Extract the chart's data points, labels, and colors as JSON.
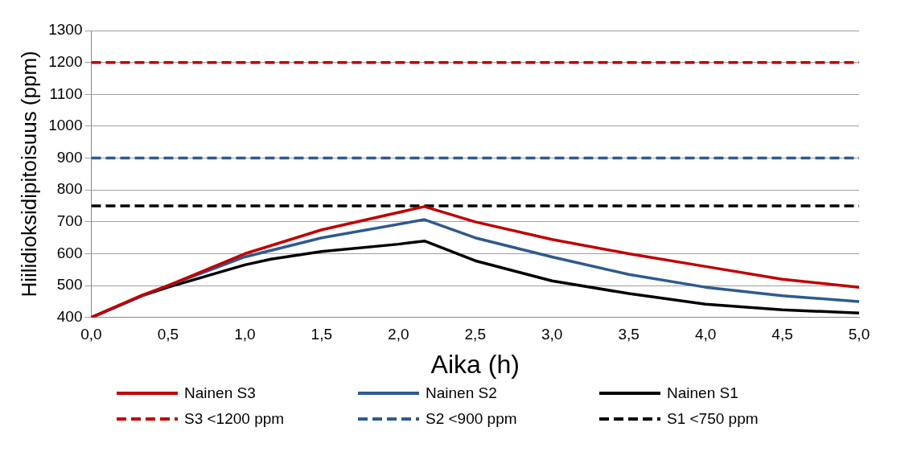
{
  "chart_data": {
    "type": "line",
    "xlabel": "Aika (h)",
    "ylabel": "Hiilidioksidipitoisuus (ppm)",
    "xlim": [
      0,
      5
    ],
    "xticks": [
      {
        "value": 0,
        "label": "0,0"
      },
      {
        "value": 0.5,
        "label": "0,5"
      },
      {
        "value": 1,
        "label": "1,0"
      },
      {
        "value": 1.5,
        "label": "1,5"
      },
      {
        "value": 2,
        "label": "2,0"
      },
      {
        "value": 2.5,
        "label": "2,5"
      },
      {
        "value": 3,
        "label": "3,0"
      },
      {
        "value": 3.5,
        "label": "3,5"
      },
      {
        "value": 4,
        "label": "4,0"
      },
      {
        "value": 4.5,
        "label": "4,5"
      },
      {
        "value": 5,
        "label": "5,0"
      }
    ],
    "ylim": [
      400,
      1300
    ],
    "yticks": [
      400,
      500,
      600,
      700,
      800,
      900,
      1000,
      1100,
      1200,
      1300
    ],
    "grid": "y",
    "legend": "bottom",
    "marker": "none",
    "line_style": "solid",
    "series": [
      {
        "name": "Nainen S3",
        "color": "#c00000",
        "x": [
          0,
          0.33,
          0.5,
          1,
          1.5,
          2.17,
          2.5,
          3,
          3.5,
          4,
          4.5,
          5
        ],
        "values": [
          400,
          470,
          500,
          600,
          675,
          748,
          700,
          645,
          600,
          560,
          520,
          495
        ]
      },
      {
        "name": "Nainen S2",
        "color": "#2e5a8e",
        "x": [
          0,
          0.33,
          0.5,
          1,
          1.5,
          2.17,
          2.5,
          3,
          3.5,
          4,
          4.5,
          5
        ],
        "values": [
          400,
          468,
          500,
          590,
          650,
          707,
          650,
          590,
          535,
          495,
          468,
          450
        ]
      },
      {
        "name": "Nainen S1",
        "color": "#000000",
        "x": [
          0,
          0.33,
          0.5,
          1,
          1.17,
          1.5,
          2,
          2.17,
          2.5,
          3,
          3.5,
          4,
          4.5,
          5
        ],
        "values": [
          400,
          468,
          495,
          565,
          583,
          607,
          630,
          640,
          578,
          515,
          475,
          442,
          424,
          414
        ]
      }
    ],
    "ref_lines": [
      {
        "axis": "y",
        "value": 1200,
        "label": "S3 <1200 ppm",
        "color": "#c00000",
        "line_style": "dashed"
      },
      {
        "axis": "y",
        "value": 900,
        "label": "S2 <900 ppm",
        "color": "#2e5a8e",
        "line_style": "dashed"
      },
      {
        "axis": "y",
        "value": 750,
        "label": "S1 <750 ppm",
        "color": "#000000",
        "line_style": "dashed"
      }
    ]
  }
}
